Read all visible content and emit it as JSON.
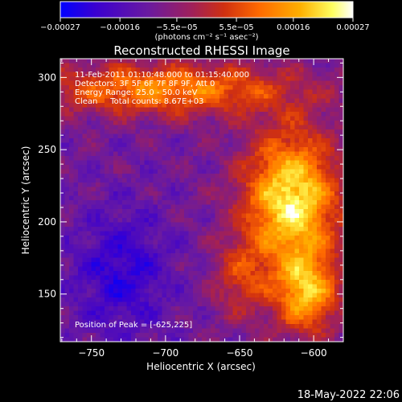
{
  "chart_data": {
    "type": "heatmap",
    "title": "Reconstructed RHESSI Image",
    "xlabel": "Heliocentric X (arcsec)",
    "ylabel": "Heliocentric Y (arcsec)",
    "xlim": [
      -771,
      -580
    ],
    "ylim": [
      117,
      313
    ],
    "xticks": [
      -750,
      -700,
      -650,
      -600
    ],
    "yticks": [
      150,
      200,
      250,
      300
    ],
    "xtick_labels": [
      "−750",
      "−700",
      "−650",
      "−600"
    ],
    "ytick_labels": [
      "150",
      "200",
      "250",
      "300"
    ],
    "colorbar": {
      "ticks": [
        -0.00027,
        -0.00016,
        -5.5e-05,
        5.5e-05,
        0.00016,
        0.00027
      ],
      "tick_labels": [
        "−0.00027",
        "−0.00016",
        "−5.5e−05",
        "5.5e−05",
        "0.00016",
        "0.00027"
      ],
      "range": [
        -0.00027,
        0.00027
      ],
      "unit_label": "(photons cm⁻² s⁻¹ asec⁻²)",
      "colors": [
        "#0000ff",
        "#3a00d0",
        "#6a1aa0",
        "#a0205a",
        "#d03010",
        "#ff6a00",
        "#ffb000",
        "#ffff60",
        "#ffffff"
      ]
    },
    "annotations": [
      "11-Feb-2011 01:10:48.000 to 01:15:40.000",
      "Detectors: 3F 5F 6F 7F 8F 9F, Att 0",
      "Energy Range: 25.0 - 50.0 keV",
      "Clean     Total counts: 8.67E+03"
    ],
    "peak_label": "Position of Peak = [-625,225]",
    "peak": [
      -625,
      225
    ],
    "grid": false
  },
  "footer": {
    "timestamp": "18-May-2022 22:06"
  }
}
